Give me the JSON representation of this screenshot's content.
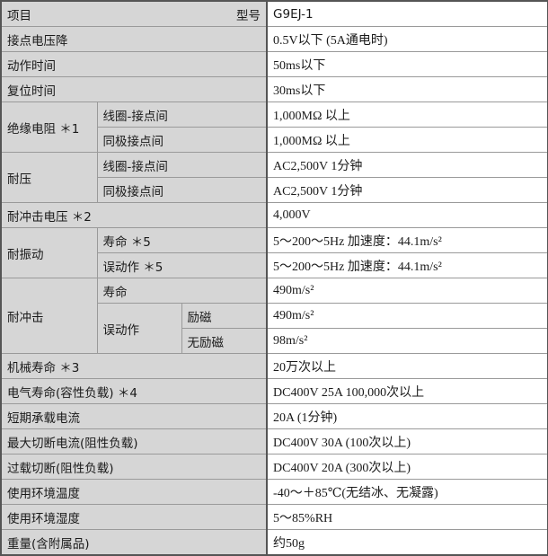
{
  "header": {
    "item_label": "项目",
    "model_label": "型号",
    "model": "G9EJ-1"
  },
  "rows": {
    "contact_voltage_drop": {
      "label": "接点电压降",
      "value": "0.5V以下 (5A通电时)"
    },
    "operate_time": {
      "label": "动作时间",
      "value": "50ms以下"
    },
    "release_time": {
      "label": "复位时间",
      "value": "30ms以下"
    },
    "insulation": {
      "label": "绝缘电阻 ＊1",
      "sub1": "线圈-接点间",
      "value1": "1,000MΩ 以上",
      "sub2": "同极接点间",
      "value2": "1,000MΩ 以上"
    },
    "dielectric": {
      "label": "耐压",
      "sub1": "线圈-接点间",
      "value1": "AC2,500V 1分钟",
      "sub2": "同极接点间",
      "value2": "AC2,500V 1分钟"
    },
    "impulse_voltage": {
      "label": "耐冲击电压 ＊2",
      "value": "4,000V"
    },
    "vibration": {
      "label": "耐振动",
      "sub1": "寿命 ＊5",
      "value1": "5～200～5Hz 加速度：44.1m/s²",
      "sub2": "误动作 ＊5",
      "value2": "5～200～5Hz 加速度：44.1m/s²"
    },
    "shock": {
      "label": "耐冲击",
      "sub1": "寿命",
      "value1": "490m/s²",
      "sub2": "误动作",
      "sub2a": "励磁",
      "value2a": "490m/s²",
      "sub2b": "无励磁",
      "value2b": "98m/s²"
    },
    "mechanical_life": {
      "label": "机械寿命 ＊3",
      "value": "20万次以上"
    },
    "electrical_life": {
      "label": "电气寿命(容性负载) ＊4",
      "value": "DC400V 25A 100,000次以上"
    },
    "short_time_current": {
      "label": "短期承载电流",
      "value": "20A (1分钟)"
    },
    "max_break_current": {
      "label": "最大切断电流(阻性负载)",
      "value": "DC400V 30A (100次以上)"
    },
    "overload_break": {
      "label": "过载切断(阻性负载)",
      "value": "DC400V 20A (300次以上)"
    },
    "ambient_temp": {
      "label": "使用环境温度",
      "value": "-40～＋85℃(无结冰、无凝露)"
    },
    "ambient_humidity": {
      "label": "使用环境湿度",
      "value": "5～85%RH"
    },
    "weight": {
      "label": "重量(含附属品)",
      "value": "约50g"
    }
  }
}
